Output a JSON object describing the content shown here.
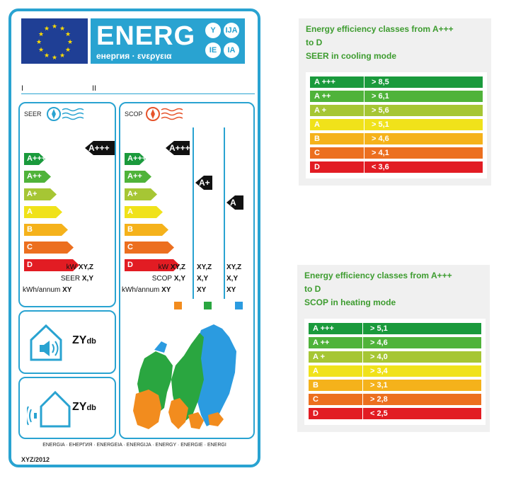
{
  "label": {
    "brand": "ENERG",
    "brand_sub": "енергия · ενεργεια",
    "circles": [
      "Y",
      "IJA",
      "IE",
      "IA"
    ],
    "roman": [
      "I",
      "II"
    ],
    "seer": {
      "title": "SEER",
      "classes": [
        "A+++",
        "A++",
        "A+",
        "A",
        "B",
        "C",
        "D"
      ],
      "rating": "A+++",
      "specs": [
        {
          "label": "kW",
          "value": "XY,Z"
        },
        {
          "label": "SEER",
          "value": "X,Y"
        },
        {
          "label": "kWh/annum",
          "value": "XY"
        }
      ]
    },
    "scop": {
      "title": "SCOP",
      "classes": [
        "A+++",
        "A++",
        "A+",
        "A",
        "B",
        "C",
        "D"
      ],
      "ratings": [
        "A+++",
        "A+",
        "A"
      ],
      "spec_labels": [
        "kW",
        "SCOP",
        "kWh/annum"
      ],
      "spec_cols": [
        [
          "XY,Z",
          "X,Y",
          "XY"
        ],
        [
          "XY,Z",
          "X,Y",
          "XY"
        ],
        [
          "XY,Z",
          "X,Y",
          "XY"
        ]
      ],
      "zone_colors": [
        "#f28c1e",
        "#2aa640",
        "#2b9be0"
      ]
    },
    "noise_indoor": {
      "value": "ZY",
      "unit": "db"
    },
    "noise_outdoor": {
      "value": "ZY",
      "unit": "db"
    },
    "footer_langs": "ENERGIA · ЕНЕРГИЯ · ENERGEIA · ENERGIJA · ENERGY · ENERGIE · ENERGI",
    "footer_code": "XYZ/2012"
  },
  "class_colors": [
    "#1a9a3c",
    "#4fb33a",
    "#a6c634",
    "#f0e21a",
    "#f5b21b",
    "#ec6f1f",
    "#e21c23"
  ],
  "cooling_table": {
    "title": [
      "Energy efficiency classes from A+++",
      "to D",
      "SEER in cooling mode"
    ],
    "rows": [
      {
        "cls": "A +++",
        "val": "> 8,5"
      },
      {
        "cls": "A ++",
        "val": "> 6,1"
      },
      {
        "cls": "A +",
        "val": "> 5,6"
      },
      {
        "cls": "A",
        "val": "> 5,1"
      },
      {
        "cls": "B",
        "val": "> 4,6"
      },
      {
        "cls": "C",
        "val": "> 4,1"
      },
      {
        "cls": "D",
        "val": "< 3,6"
      }
    ]
  },
  "heating_table": {
    "title": [
      "Energy efficiency classes from A+++",
      "to D",
      "SCOP in heating mode"
    ],
    "rows": [
      {
        "cls": "A +++",
        "val": "> 5,1"
      },
      {
        "cls": "A ++",
        "val": "> 4,6"
      },
      {
        "cls": "A +",
        "val": "> 4,0"
      },
      {
        "cls": "A",
        "val": "> 3,4"
      },
      {
        "cls": "B",
        "val": "> 3,1"
      },
      {
        "cls": "C",
        "val": "> 2,8"
      },
      {
        "cls": "D",
        "val": "< 2,5"
      }
    ]
  }
}
